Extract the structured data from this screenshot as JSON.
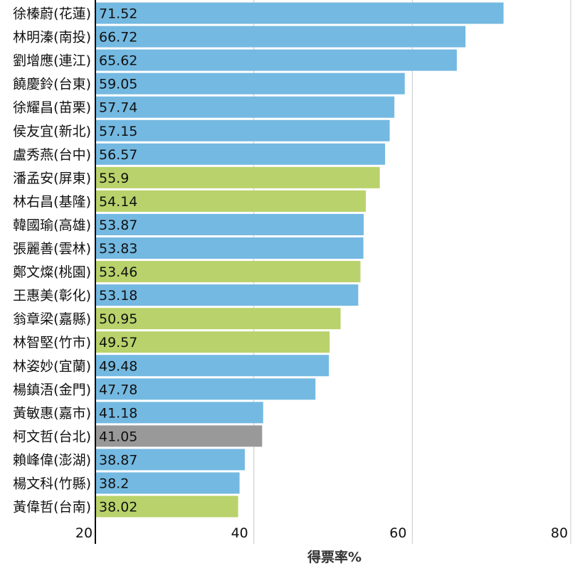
{
  "chart_data": {
    "type": "bar",
    "orientation": "horizontal",
    "xlabel": "得票率%",
    "xlim": [
      20,
      80
    ],
    "xticks": [
      "20",
      "40",
      "60",
      "80"
    ],
    "grid": true,
    "categories": [
      "徐榛蔚(花蓮)",
      "林明溱(南投)",
      "劉增應(連江)",
      "饒慶鈴(台東)",
      "徐耀昌(苗栗)",
      "侯友宜(新北)",
      "盧秀燕(台中)",
      "潘孟安(屏東)",
      "林右昌(基隆)",
      "韓國瑜(高雄)",
      "張麗善(雲林)",
      "鄭文燦(桃園)",
      "王惠美(彰化)",
      "翁章梁(嘉縣)",
      "林智堅(竹市)",
      "林姿妙(宜蘭)",
      "楊鎮浯(金門)",
      "黃敏惠(嘉市)",
      "柯文哲(台北)",
      "賴峰偉(澎湖)",
      "楊文科(竹縣)",
      "黃偉哲(台南)"
    ],
    "values": [
      71.52,
      66.72,
      65.62,
      59.05,
      57.74,
      57.15,
      56.57,
      55.9,
      54.14,
      53.87,
      53.83,
      53.46,
      53.18,
      50.95,
      49.57,
      49.48,
      47.78,
      41.18,
      41.05,
      38.87,
      38.2,
      38.02
    ],
    "value_labels": [
      "71.52",
      "66.72",
      "65.62",
      "59.05",
      "57.74",
      "57.15",
      "56.57",
      "55.9",
      "54.14",
      "53.87",
      "53.83",
      "53.46",
      "53.18",
      "50.95",
      "49.57",
      "49.48",
      "47.78",
      "41.18",
      "41.05",
      "38.87",
      "38.2",
      "38.02"
    ],
    "bar_colors": [
      "#74b9e1",
      "#74b9e1",
      "#74b9e1",
      "#74b9e1",
      "#74b9e1",
      "#74b9e1",
      "#74b9e1",
      "#b9d26b",
      "#b9d26b",
      "#74b9e1",
      "#74b9e1",
      "#b9d26b",
      "#74b9e1",
      "#b9d26b",
      "#b9d26b",
      "#74b9e1",
      "#74b9e1",
      "#74b9e1",
      "#999999",
      "#74b9e1",
      "#74b9e1",
      "#b9d26b"
    ],
    "palette": {
      "kmt": "#74b9e1",
      "dpp": "#b9d26b",
      "independent": "#999999"
    }
  }
}
